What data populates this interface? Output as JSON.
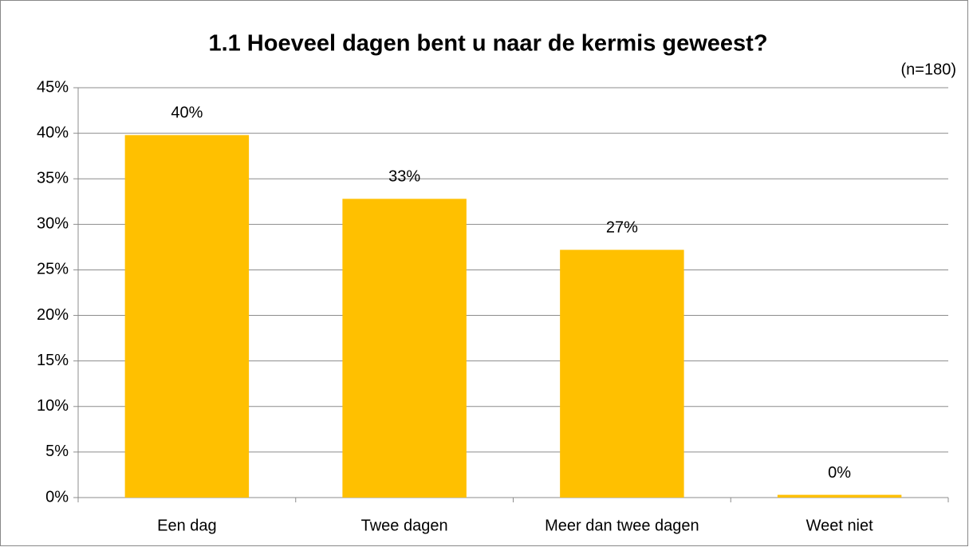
{
  "chart_data": {
    "type": "bar",
    "title": "1.1 Hoeveel dagen bent u naar de kermis geweest?",
    "annotation": "(n=180)",
    "categories": [
      "Een dag",
      "Twee dagen",
      "Meer dan twee dagen",
      "Weet niet"
    ],
    "values": [
      39.8,
      32.8,
      27.2,
      0.3
    ],
    "value_labels": [
      "40%",
      "33%",
      "27%",
      "0%"
    ],
    "color": "#ffc000",
    "ylim": [
      0,
      45
    ],
    "yticks": [
      {
        "value": 0,
        "label": "0%"
      },
      {
        "value": 5,
        "label": "5%"
      },
      {
        "value": 10,
        "label": "10%"
      },
      {
        "value": 15,
        "label": "15%"
      },
      {
        "value": 20,
        "label": "20%"
      },
      {
        "value": 25,
        "label": "25%"
      },
      {
        "value": 30,
        "label": "30%"
      },
      {
        "value": 35,
        "label": "35%"
      },
      {
        "value": 40,
        "label": "40%"
      },
      {
        "value": 45,
        "label": "45%"
      }
    ],
    "grid": true
  }
}
